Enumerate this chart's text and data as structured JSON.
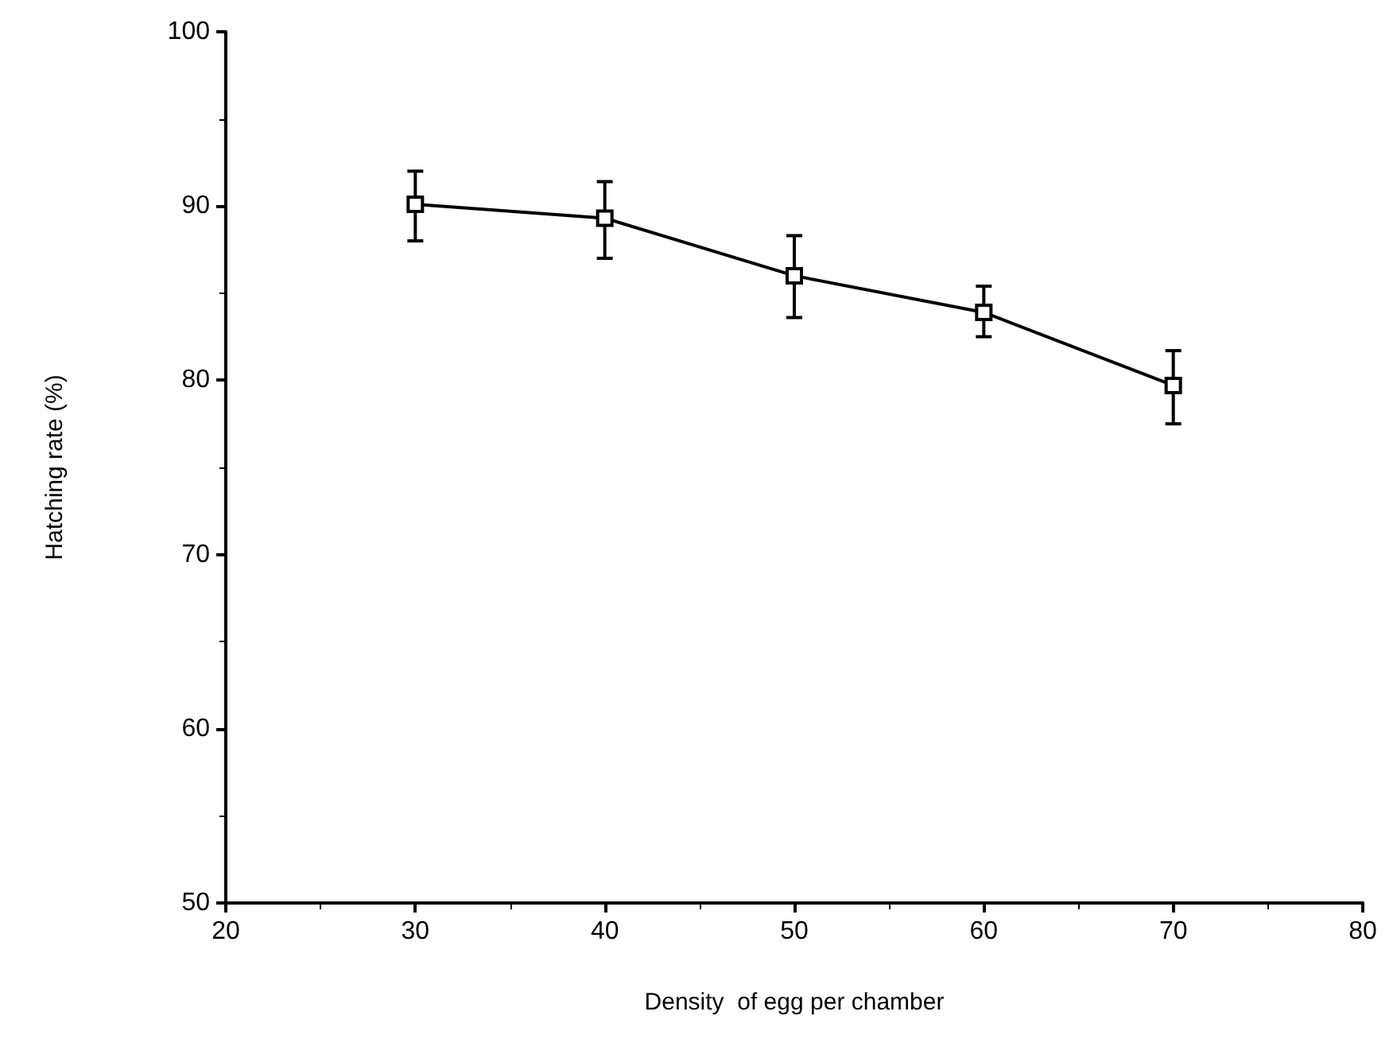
{
  "chart_data": {
    "type": "line",
    "xlabel": "Density  of egg per chamber",
    "ylabel": "Hatching rate (%)",
    "x": [
      30,
      40,
      50,
      60,
      70
    ],
    "series": [
      {
        "color": "#000000",
        "values": [
          90.1,
          89.3,
          86.0,
          83.9,
          79.7
        ],
        "errors": [
          [
            88.0,
            92.0
          ],
          [
            87.0,
            91.4
          ],
          [
            83.6,
            88.3
          ],
          [
            82.5,
            85.4
          ],
          [
            77.5,
            81.7
          ]
        ]
      }
    ],
    "xlim": [
      20,
      80
    ],
    "xticks": [
      20,
      30,
      40,
      50,
      60,
      70,
      80
    ],
    "ylim": [
      50,
      100
    ],
    "yticks": [
      50,
      60,
      70,
      80,
      90,
      100
    ],
    "grid": false,
    "marker": "square",
    "line_style": "solid"
  }
}
